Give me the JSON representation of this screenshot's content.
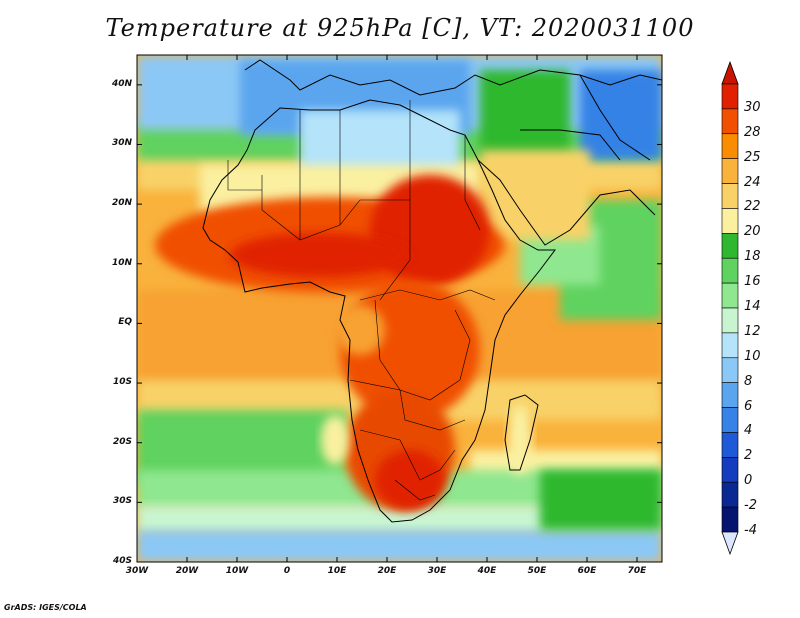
{
  "title": "Temperature at 925hPa [C], VT: 2020031100",
  "credit": "GrADS: IGES/COLA",
  "map": {
    "lon_range": [
      -30,
      75
    ],
    "lat_range": [
      -40,
      45
    ],
    "lat_ticks": [
      "40N",
      "30N",
      "20N",
      "10N",
      "EQ",
      "10S",
      "20S",
      "30S",
      "40S"
    ],
    "lat_values": [
      40,
      30,
      20,
      10,
      0,
      -10,
      -20,
      -30,
      -40
    ],
    "lon_ticks": [
      "30W",
      "20W",
      "10W",
      "0",
      "10E",
      "20E",
      "30E",
      "40E",
      "50E",
      "60E",
      "70E"
    ],
    "lon_values": [
      -30,
      -20,
      -10,
      0,
      10,
      20,
      30,
      40,
      50,
      60,
      70
    ]
  },
  "colorbar": {
    "labels": [
      "30",
      "28",
      "25",
      "24",
      "22",
      "20",
      "18",
      "16",
      "14",
      "12",
      "10",
      "8",
      "6",
      "4",
      "2",
      "0",
      "-2",
      "-4"
    ],
    "colors": [
      "#e02000",
      "#f05000",
      "#fa8c00",
      "#f9b23c",
      "#f8d268",
      "#faf0a0",
      "#2fb82f",
      "#5fd25f",
      "#8fe78f",
      "#c8f5d0",
      "#b4e3fa",
      "#8cc8f5",
      "#5aa5ee",
      "#3682e6",
      "#1e5ad7",
      "#143cbe",
      "#0a2894",
      "#05146e"
    ],
    "top_color": "#c81400",
    "bottom_color": "#dce6ff"
  }
}
